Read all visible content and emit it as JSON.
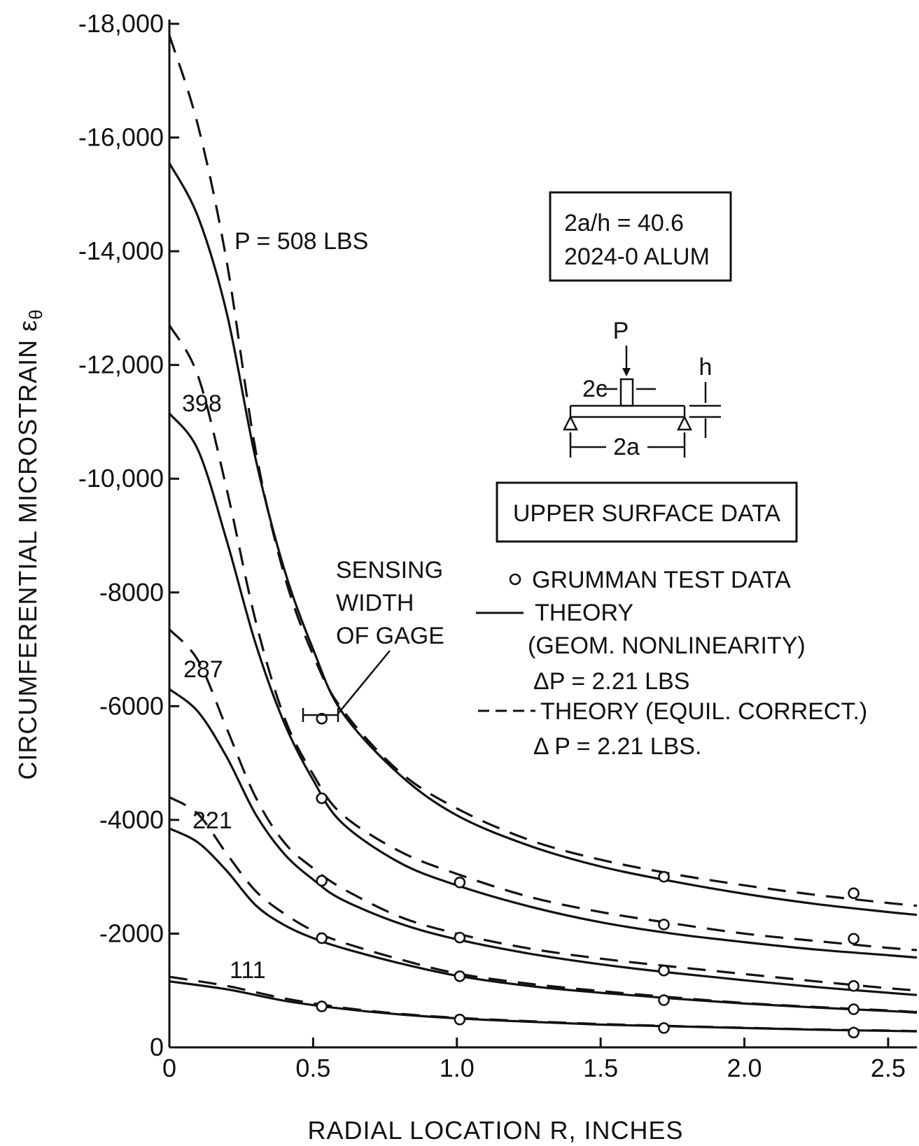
{
  "chart_data": {
    "type": "line",
    "title": "",
    "xlabel": "RADIAL LOCATION R, INCHES",
    "ylabel": "CIRCUMFERENTIAL MICROSTRAIN ε",
    "ylabel_subscript": "θ",
    "xlim": [
      0,
      2.6
    ],
    "ylim": [
      0,
      -18000
    ],
    "x_ticks": [
      0,
      0.5,
      1.0,
      1.5,
      2.0,
      2.5
    ],
    "x_tick_labels": [
      "0",
      "0.5",
      "1.0",
      "1.5",
      "2.0",
      "2.5"
    ],
    "y_ticks": [
      0,
      -2000,
      -4000,
      -6000,
      -8000,
      -10000,
      -12000,
      -14000,
      -16000,
      -18000
    ],
    "y_tick_labels": [
      "0",
      "-2000",
      "-4000",
      "-6000",
      "-8000",
      "-10,000",
      "-12,000",
      "-14,000",
      "-16,000",
      "-18,000"
    ],
    "grid": false,
    "legend_position": "right",
    "series": [
      {
        "load": "508",
        "label": "P = 508 LBS",
        "theory": {
          "x": [
            0,
            0.1,
            0.2,
            0.3,
            0.4,
            0.5,
            0.6,
            0.8,
            1.0,
            1.25,
            1.5,
            1.75,
            2.0,
            2.25,
            2.5,
            2.6
          ],
          "y": [
            -15550,
            -14600,
            -12900,
            -10350,
            -8400,
            -7000,
            -5900,
            -4800,
            -4080,
            -3550,
            -3180,
            -2920,
            -2700,
            -2520,
            -2380,
            -2330
          ]
        },
        "equil": {
          "x": [
            0,
            0.1,
            0.2,
            0.3,
            0.4,
            0.5,
            0.6,
            0.8,
            1.0,
            1.25,
            1.5,
            1.75,
            2.0,
            2.25,
            2.5,
            2.6
          ],
          "y": [
            -17800,
            -16200,
            -13800,
            -10500,
            -8300,
            -6900,
            -5950,
            -4850,
            -4200,
            -3650,
            -3300,
            -3050,
            -2850,
            -2680,
            -2540,
            -2490
          ]
        },
        "test": {
          "x": [
            0.53,
            1.72,
            2.38
          ],
          "y": [
            -5780,
            -3000,
            -2710
          ]
        }
      },
      {
        "load": "398",
        "label": "398",
        "theory": {
          "x": [
            0,
            0.1,
            0.2,
            0.3,
            0.4,
            0.5,
            0.6,
            0.8,
            1.0,
            1.25,
            1.5,
            1.75,
            2.0,
            2.25,
            2.5,
            2.6
          ],
          "y": [
            -11150,
            -10500,
            -8900,
            -7100,
            -5700,
            -4700,
            -3950,
            -3250,
            -2850,
            -2480,
            -2200,
            -2000,
            -1850,
            -1720,
            -1620,
            -1580
          ]
        },
        "equil": {
          "x": [
            0,
            0.1,
            0.2,
            0.3,
            0.4,
            0.5,
            0.6,
            0.8,
            1.0,
            1.25,
            1.5,
            1.75,
            2.0,
            2.25,
            2.5,
            2.6
          ],
          "y": [
            -12700,
            -11800,
            -9800,
            -7500,
            -5800,
            -4800,
            -4100,
            -3450,
            -3050,
            -2650,
            -2380,
            -2180,
            -2000,
            -1870,
            -1750,
            -1710
          ]
        },
        "test": {
          "x": [
            0.53,
            1.01,
            1.72,
            2.38
          ],
          "y": [
            -4380,
            -2900,
            -2160,
            -1910
          ]
        }
      },
      {
        "load": "287",
        "label": "287",
        "theory": {
          "x": [
            0,
            0.1,
            0.2,
            0.3,
            0.4,
            0.5,
            0.6,
            0.8,
            1.0,
            1.25,
            1.5,
            1.75,
            2.0,
            2.25,
            2.5,
            2.6
          ],
          "y": [
            -6300,
            -5900,
            -5100,
            -4100,
            -3400,
            -2950,
            -2600,
            -2180,
            -1900,
            -1650,
            -1460,
            -1310,
            -1180,
            -1060,
            -960,
            -920
          ]
        },
        "equil": {
          "x": [
            0,
            0.1,
            0.2,
            0.3,
            0.4,
            0.5,
            0.6,
            0.8,
            1.0,
            1.25,
            1.5,
            1.75,
            2.0,
            2.25,
            2.5,
            2.6
          ],
          "y": [
            -7350,
            -6800,
            -5600,
            -4400,
            -3600,
            -3150,
            -2800,
            -2300,
            -2000,
            -1740,
            -1560,
            -1420,
            -1290,
            -1160,
            -1040,
            -1000
          ]
        },
        "test": {
          "x": [
            0.53,
            1.01,
            1.72,
            2.38
          ],
          "y": [
            -2930,
            -1930,
            -1350,
            -1080
          ]
        }
      },
      {
        "load": "221",
        "label": "221",
        "theory": {
          "x": [
            0,
            0.1,
            0.2,
            0.3,
            0.4,
            0.5,
            0.6,
            0.8,
            1.0,
            1.25,
            1.5,
            1.75,
            2.0,
            2.25,
            2.5,
            2.6
          ],
          "y": [
            -3850,
            -3600,
            -3100,
            -2500,
            -2150,
            -1920,
            -1750,
            -1480,
            -1260,
            -1080,
            -960,
            -860,
            -770,
            -700,
            -640,
            -610
          ]
        },
        "equil": {
          "x": [
            0,
            0.1,
            0.2,
            0.3,
            0.4,
            0.5,
            0.6,
            0.8,
            1.0,
            1.25,
            1.5,
            1.75,
            2.0,
            2.25,
            2.5,
            2.6
          ],
          "y": [
            -4400,
            -4100,
            -3400,
            -2750,
            -2350,
            -2050,
            -1850,
            -1550,
            -1300,
            -1120,
            -990,
            -880,
            -780,
            -710,
            -650,
            -620
          ]
        },
        "test": {
          "x": [
            0.53,
            1.01,
            1.72,
            2.38
          ],
          "y": [
            -1920,
            -1250,
            -830,
            -670
          ]
        }
      },
      {
        "load": "111",
        "label": "111",
        "theory": {
          "x": [
            0,
            0.2,
            0.4,
            0.6,
            0.8,
            1.0,
            1.25,
            1.5,
            1.75,
            2.0,
            2.25,
            2.5,
            2.6
          ],
          "y": [
            -1160,
            -1020,
            -820,
            -680,
            -580,
            -510,
            -450,
            -400,
            -370,
            -340,
            -310,
            -290,
            -280
          ]
        },
        "equil": {
          "x": [
            0,
            0.2,
            0.4,
            0.6,
            0.8,
            1.0,
            1.25,
            1.5,
            1.75,
            2.0,
            2.25,
            2.5,
            2.6
          ],
          "y": [
            -1240,
            -1080,
            -860,
            -700,
            -590,
            -520,
            -460,
            -410,
            -375,
            -345,
            -315,
            -295,
            -285
          ]
        },
        "test": {
          "x": [
            0.53,
            1.01,
            1.72,
            2.38
          ],
          "y": [
            -720,
            -490,
            -340,
            -260
          ]
        }
      }
    ],
    "legend": {
      "test_data": "GRUMMAN TEST DATA",
      "theory_line1": "THEORY",
      "theory_line2": "(GEOM. NONLINEARITY)",
      "theory_line3": "ΔP = 2.21 LBS",
      "equil_line1": "THEORY (EQUIL. CORRECT.)",
      "equil_line2": "Δ P = 2.21 LBS."
    },
    "annotations": {
      "params_line1": "2a/h = 40.6",
      "params_line2": "2024-0 ALUM",
      "surface": "UPPER SURFACE DATA",
      "gage_line1": "SENSING",
      "gage_line2": "WIDTH",
      "gage_line3": "OF GAGE",
      "diagram_p": "P",
      "diagram_h": "h",
      "diagram_2c": "2c",
      "diagram_2a": "2a"
    }
  }
}
